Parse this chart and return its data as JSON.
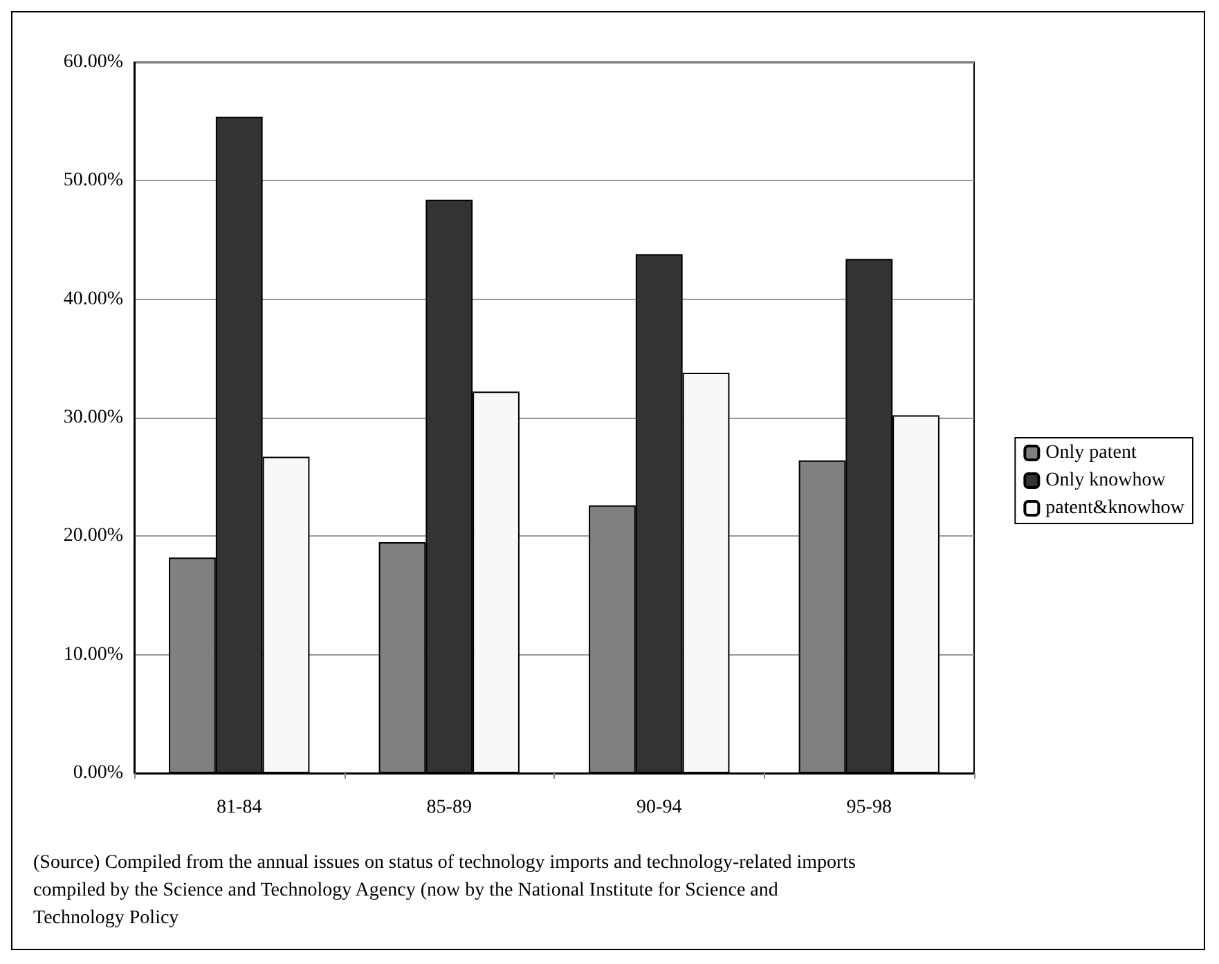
{
  "chart_data": {
    "type": "bar",
    "categories": [
      "81-84",
      "85-89",
      "90-94",
      "95-98"
    ],
    "series": [
      {
        "name": "Only patent",
        "color": "#808080",
        "values": [
          18.2,
          19.5,
          22.6,
          26.4
        ]
      },
      {
        "name": "Only knowhow",
        "color": "#333333",
        "values": [
          55.4,
          48.4,
          43.8,
          43.4
        ]
      },
      {
        "name": "patent&knowhow",
        "color": "#f8f8f8",
        "values": [
          26.7,
          32.2,
          33.8,
          30.2
        ]
      }
    ],
    "ylim": [
      0,
      60
    ],
    "yticks": [
      {
        "value": 0,
        "label": "0.00%"
      },
      {
        "value": 10,
        "label": "10.00%"
      },
      {
        "value": 20,
        "label": "20.00%"
      },
      {
        "value": 30,
        "label": "30.00%"
      },
      {
        "value": 40,
        "label": "40.00%"
      },
      {
        "value": 50,
        "label": "50.00%"
      },
      {
        "value": 60,
        "label": "60.00%"
      }
    ],
    "grid": "y",
    "legend": "right",
    "annotations": [
      "(Source) Compiled from the annual issues on status of technology imports and technology-related imports compiled by the Science and Technology Agency (now by the National Institute for Science and Technology Policy"
    ]
  }
}
